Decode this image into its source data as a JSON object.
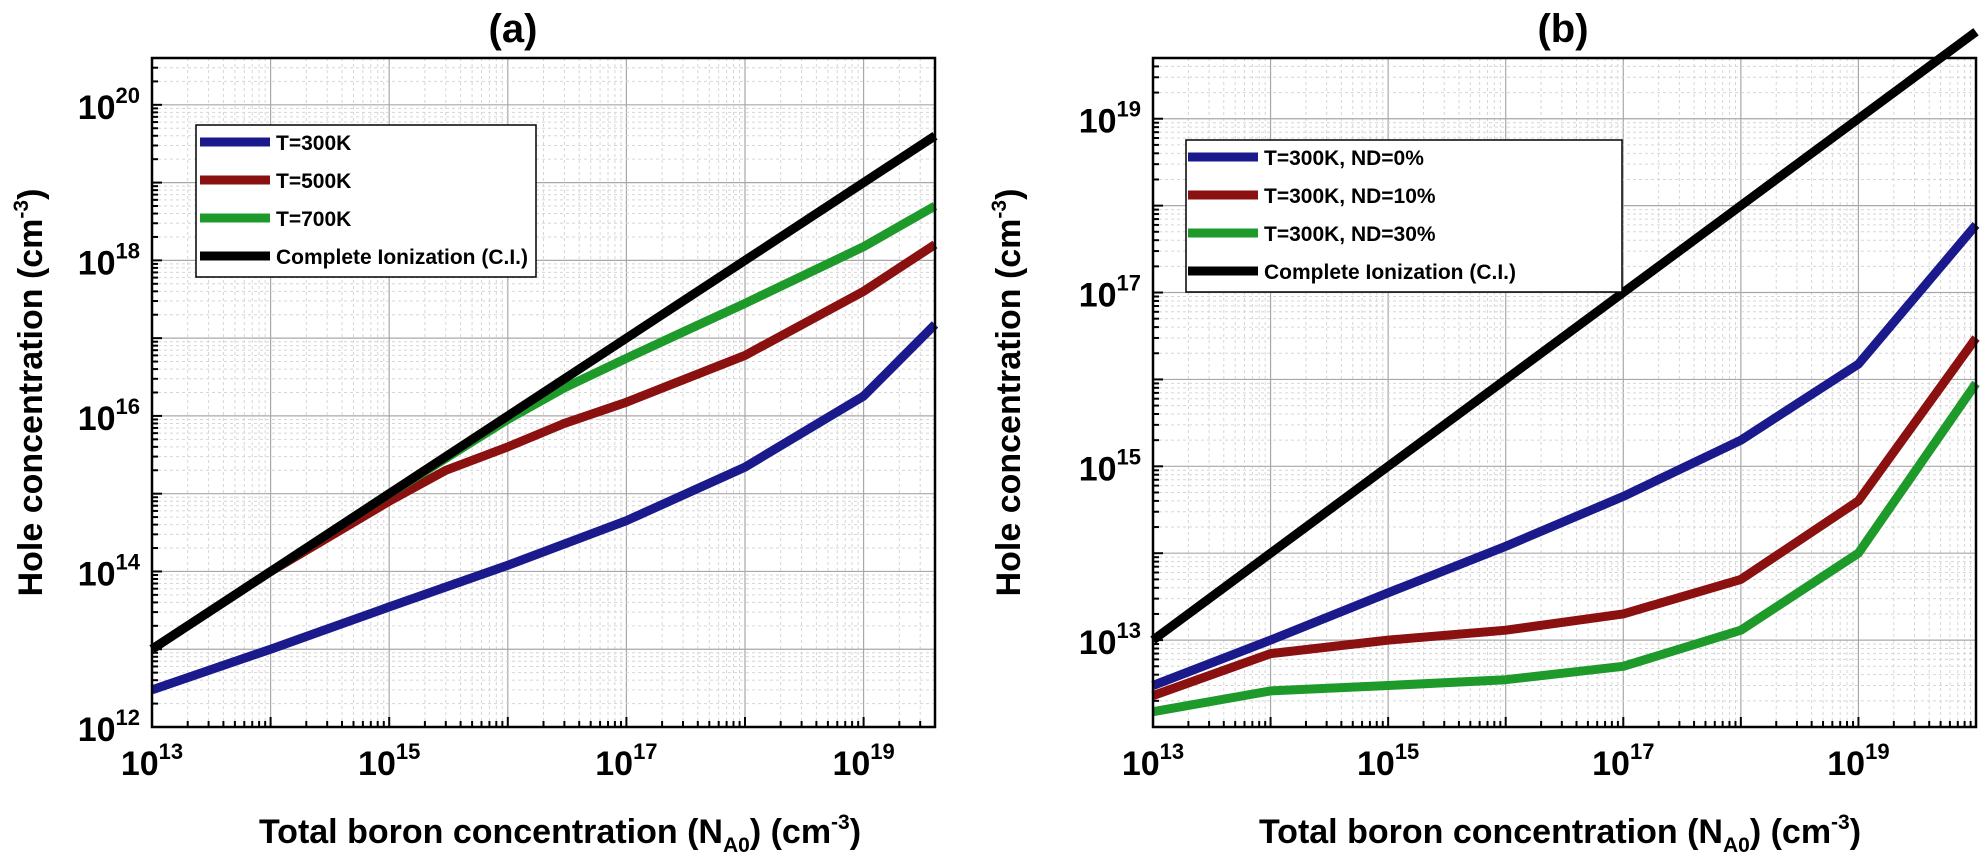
{
  "chart_data": [
    {
      "type": "line",
      "title": "(a)",
      "xlabel": "Total boron concentration (N",
      "xlabel_sub": "A0",
      "xlabel_tail": ") (cm",
      "xlabel_sup": "-3",
      "xlabel_end": ")",
      "ylabel": "Hole concentration (cm",
      "ylabel_sup": "-3",
      "ylabel_end": ")",
      "x_scale": "log",
      "y_scale": "log",
      "xlim": [
        10000000000000.0,
        4e+19
      ],
      "ylim": [
        1000000000000.0,
        4e+20
      ],
      "x_ticks": [
        {
          "base": "10",
          "exp": "13",
          "value": 10000000000000.0
        },
        {
          "base": "10",
          "exp": "15",
          "value": 1000000000000000.0
        },
        {
          "base": "10",
          "exp": "17",
          "value": 1e+17
        },
        {
          "base": "10",
          "exp": "19",
          "value": 1e+19
        }
      ],
      "y_ticks": [
        {
          "base": "10",
          "exp": "12",
          "value": 1000000000000.0
        },
        {
          "base": "10",
          "exp": "14",
          "value": 100000000000000.0
        },
        {
          "base": "10",
          "exp": "16",
          "value": 1e+16
        },
        {
          "base": "10",
          "exp": "18",
          "value": 1e+18
        },
        {
          "base": "10",
          "exp": "20",
          "value": 1e+20
        }
      ],
      "grid": true,
      "legend_position": "top-left",
      "series": [
        {
          "name": "T=300K",
          "color": "#1a1a8c",
          "x": [
            10000000000000.0,
            100000000000000.0,
            1000000000000000.0,
            1e+16,
            1e+17,
            1e+18,
            1e+19,
            4e+19
          ],
          "y": [
            3000000000000.0,
            10000000000000.0,
            35000000000000.0,
            120000000000000.0,
            450000000000000.0,
            2200000000000000.0,
            1.8e+16,
            1.5e+17
          ]
        },
        {
          "name": "T=500K",
          "color": "#8b1010",
          "x": [
            10000000000000.0,
            100000000000000.0,
            1000000000000000.0,
            3000000000000000.0,
            1e+16,
            3e+16,
            1e+17,
            1e+18,
            1e+19,
            4e+19
          ],
          "y": [
            10000000000000.0,
            100000000000000.0,
            800000000000000.0,
            2000000000000000.0,
            4000000000000000.0,
            8000000000000000.0,
            1.5e+16,
            6e+16,
            4e+17,
            1.6e+18
          ]
        },
        {
          "name": "T=700K",
          "color": "#1e9a2a",
          "x": [
            10000000000000.0,
            100000000000000.0,
            1000000000000000.0,
            1e+16,
            3e+16,
            1e+17,
            3e+17,
            1e+18,
            1e+19,
            4e+19
          ],
          "y": [
            10000000000000.0,
            100000000000000.0,
            1000000000000000.0,
            9000000000000000.0,
            2.3e+16,
            5.5e+16,
            1.2e+17,
            2.8e+17,
            1.5e+18,
            5e+18
          ]
        },
        {
          "name": "Complete Ionization (C.I.)",
          "color": "#000000",
          "x": [
            10000000000000.0,
            4e+19
          ],
          "y": [
            10000000000000.0,
            4e+19
          ]
        }
      ]
    },
    {
      "type": "line",
      "title": "(b)",
      "xlabel": "Total boron concentration (N",
      "xlabel_sub": "A0",
      "xlabel_tail": ") (cm",
      "xlabel_sup": "-3",
      "xlabel_end": ")",
      "ylabel": "Hole concentration  (cm",
      "ylabel_sup": "-3",
      "ylabel_end": ")",
      "x_scale": "log",
      "y_scale": "log",
      "xlim": [
        10000000000000.0,
        1e+20
      ],
      "ylim": [
        1000000000000.0,
        5e+19
      ],
      "x_ticks": [
        {
          "base": "10",
          "exp": "13",
          "value": 10000000000000.0
        },
        {
          "base": "10",
          "exp": "15",
          "value": 1000000000000000.0
        },
        {
          "base": "10",
          "exp": "17",
          "value": 1e+17
        },
        {
          "base": "10",
          "exp": "19",
          "value": 1e+19
        }
      ],
      "y_ticks": [
        {
          "base": "10",
          "exp": "13",
          "value": 10000000000000.0
        },
        {
          "base": "10",
          "exp": "15",
          "value": 1000000000000000.0
        },
        {
          "base": "10",
          "exp": "17",
          "value": 1e+17
        },
        {
          "base": "10",
          "exp": "19",
          "value": 1e+19
        }
      ],
      "grid": true,
      "legend_position": "top-left",
      "series": [
        {
          "name": "T=300K, ND=0%",
          "color": "#1a1a8c",
          "x": [
            10000000000000.0,
            100000000000000.0,
            1000000000000000.0,
            1e+16,
            1e+17,
            1e+18,
            1e+19,
            1e+20
          ],
          "y": [
            3000000000000.0,
            10000000000000.0,
            35000000000000.0,
            120000000000000.0,
            450000000000000.0,
            2000000000000000.0,
            1.5e+16,
            6e+17
          ]
        },
        {
          "name": "T=300K, ND=10%",
          "color": "#8b1010",
          "x": [
            10000000000000.0,
            100000000000000.0,
            1000000000000000.0,
            1e+16,
            1e+17,
            1e+18,
            1e+19,
            1e+20
          ],
          "y": [
            2300000000000.0,
            7000000000000.0,
            10000000000000.0,
            13000000000000.0,
            20000000000000.0,
            50000000000000.0,
            400000000000000.0,
            3e+16
          ]
        },
        {
          "name": "T=300K, ND=30%",
          "color": "#1e9a2a",
          "x": [
            10000000000000.0,
            100000000000000.0,
            1000000000000000.0,
            1e+16,
            1e+17,
            1e+18,
            1e+19,
            1e+20
          ],
          "y": [
            1500000000000.0,
            2600000000000.0,
            3000000000000.0,
            3500000000000.0,
            5000000000000.0,
            13000000000000.0,
            100000000000000.0,
            9000000000000000.0
          ]
        },
        {
          "name": "Complete Ionization (C.I.)",
          "color": "#000000",
          "x": [
            10000000000000.0,
            1e+20
          ],
          "y": [
            10000000000000.0,
            1e+20
          ]
        }
      ]
    }
  ]
}
